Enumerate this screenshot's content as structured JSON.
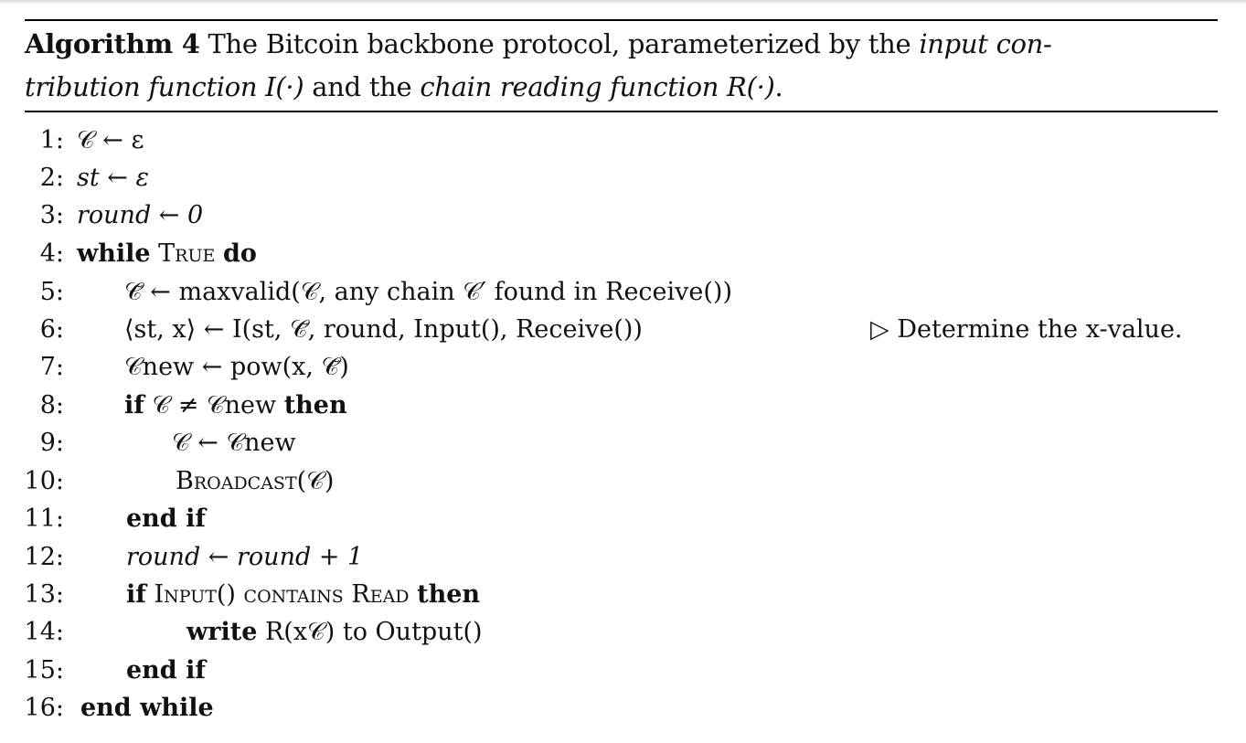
{
  "caption": {
    "label": "Algorithm 4",
    "line1_pre": "The Bitcoin backbone protocol, parameterized by the",
    "line1_it": "input con-",
    "line2_it1": "tribution function I(·)",
    "line2_mid": "and the",
    "line2_it2": "chain reading function R(·)",
    "line2_end": "."
  },
  "lines": [
    {
      "num": "1:",
      "text": "𝒞 ← ε"
    },
    {
      "num": "2:",
      "text": "st ← ε"
    },
    {
      "num": "3:",
      "text": "round ← 0"
    },
    {
      "num": "4:",
      "kw1": "while",
      "sc": "True",
      "kw2": "do"
    },
    {
      "num": "5:",
      "text": "𝒞̃ ← maxvalid(𝒞, any chain 𝒞′ found in Receive())"
    },
    {
      "num": "6:",
      "text": "⟨st, x⟩ ← I(st, 𝒞̃, round, Input(), Receive())",
      "comment": "▷ Determine the x-value."
    },
    {
      "num": "7:",
      "text": "𝒞new ← pow(x, 𝒞̃)"
    },
    {
      "num": "8:",
      "kw1": "if",
      "text": "𝒞 ≠ 𝒞new",
      "kw2": "then"
    },
    {
      "num": "9:",
      "text": "𝒞 ← 𝒞new"
    },
    {
      "num": "10:",
      "text": "Broadcast(𝒞)"
    },
    {
      "num": "11:",
      "kw1": "end if"
    },
    {
      "num": "12:",
      "text": "round ← round + 1"
    },
    {
      "num": "13:",
      "kw1": "if",
      "text": "Input() contains Read",
      "kw2": "then"
    },
    {
      "num": "14:",
      "kw1": "write",
      "text": "R(x𝒞) to Output()"
    },
    {
      "num": "15:",
      "kw1": "end if"
    },
    {
      "num": "16:",
      "kw1": "end while"
    }
  ]
}
